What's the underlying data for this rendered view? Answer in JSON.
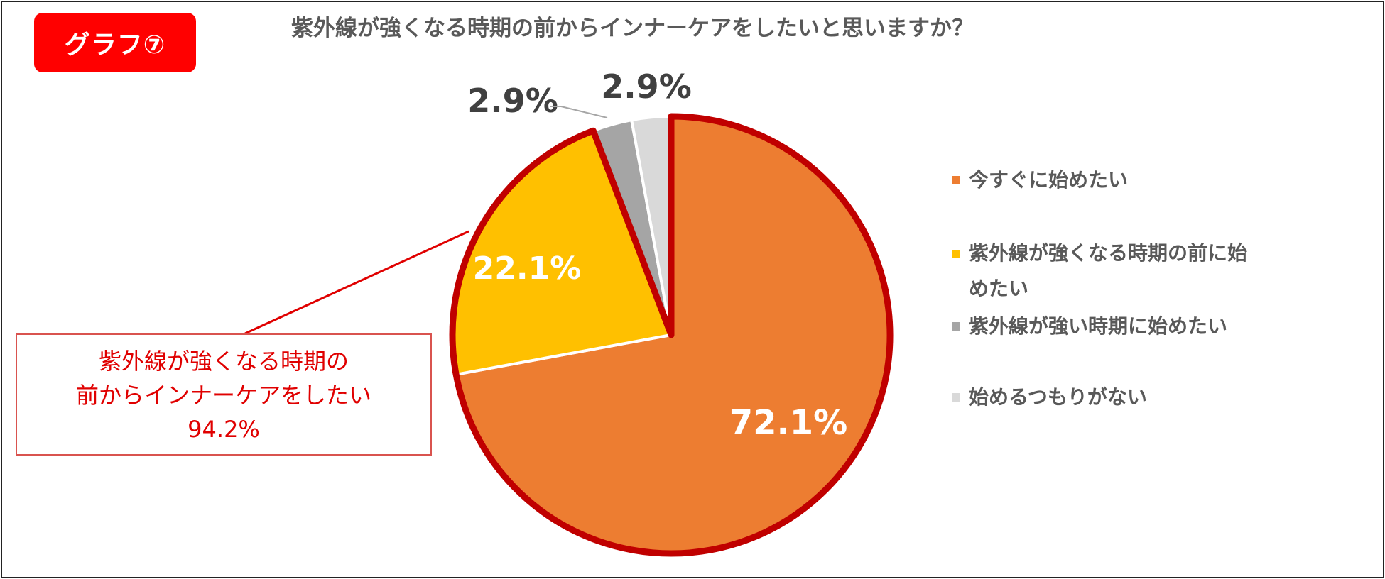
{
  "badge": {
    "label": "グラフ⑦"
  },
  "chart_data": {
    "type": "pie",
    "title": "紫外線が強くなる時期の前からインナーケアをしたいと思いますか？",
    "categories": [
      "今すぐに始めたい",
      "紫外線が強くなる時期の前に始めたい",
      "紫外線が強い時期に始めたい",
      "始めるつもりがない"
    ],
    "values": [
      72.1,
      22.1,
      2.9,
      2.9
    ],
    "data_labels": [
      "72.1%",
      "22.1%",
      "2.9%",
      "2.9%"
    ],
    "colors": [
      "#ED7D31",
      "#FFC000",
      "#A5A5A5",
      "#D9D9D9"
    ],
    "highlight_color": "#C00000",
    "legend_position": "right"
  },
  "legend": {
    "items": [
      {
        "label": "今すぐに始めたい",
        "color": "#ED7D31"
      },
      {
        "label": "紫外線が強くなる時期の前に始めたい",
        "color": "#FFC000"
      },
      {
        "label": "紫外線が強い時期に始めたい",
        "color": "#A5A5A5"
      },
      {
        "label": "始めるつもりがない",
        "color": "#D9D9D9"
      }
    ]
  },
  "callout": {
    "line1": "紫外線が強くなる時期の",
    "line2": "前からインナーケアをしたい",
    "line3": "94.2%"
  }
}
